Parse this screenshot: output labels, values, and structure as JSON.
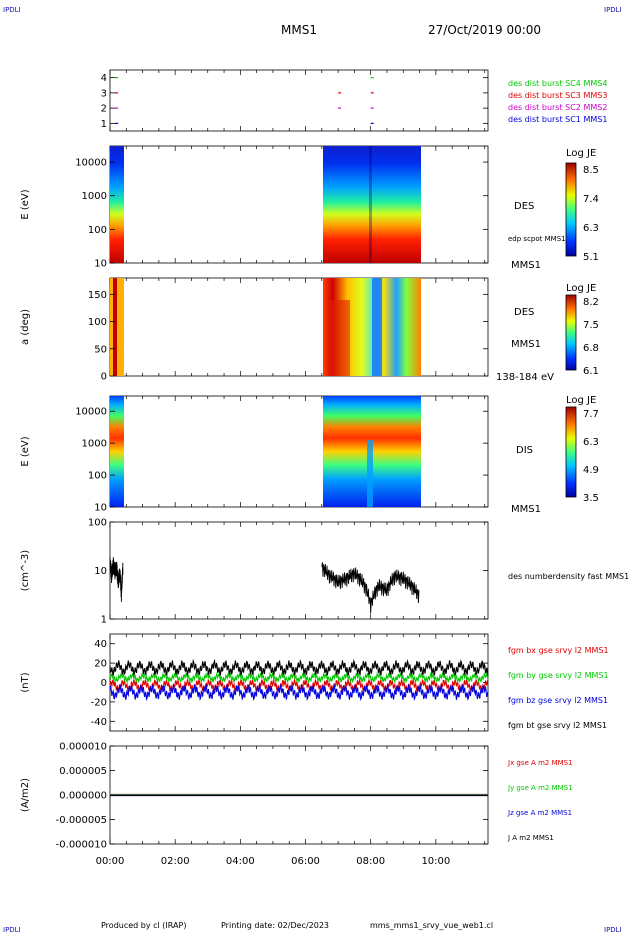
{
  "header": {
    "corner_tl": "IPDLI",
    "corner_tr": "IPDLI",
    "corner_bl": "IPDLI",
    "corner_br": "IPDLI",
    "mission": "MMS1",
    "date": "27/Oct/2019 00:00"
  },
  "footer": {
    "produced": "Produced by cl (IRAP)",
    "printed": "Printing date: 02/Dec/2023",
    "file": "mms_mms1_srvy_vue_web1.cl"
  },
  "colors": {
    "black": "#000000",
    "red": "#e00000",
    "green": "#00c800",
    "blue": "#0000e0",
    "magenta": "#d000d0",
    "gray": "#888888"
  },
  "chart_data": [
    {
      "type": "scatter",
      "panel": "burst-availability",
      "yticks": [
        "1",
        "2",
        "3",
        "4"
      ],
      "ylim": [
        0.5,
        4.5
      ],
      "series": [
        {
          "name": "des dist burst SC1 MMS1",
          "color": "#0000e0",
          "y": 1,
          "segments_h": [
            [
              0.15,
              0.25
            ],
            [
              8.0,
              8.05
            ]
          ]
        },
        {
          "name": "des dist burst SC2 MMS2",
          "color": "#d000d0",
          "y": 2,
          "segments_h": [
            [
              0.15,
              0.25
            ],
            [
              7.0,
              7.05
            ],
            [
              8.0,
              8.05
            ]
          ]
        },
        {
          "name": "des dist burst SC3 MMS3",
          "color": "#e00000",
          "y": 3,
          "segments_h": [
            [
              0.15,
              0.25
            ],
            [
              7.0,
              7.05
            ],
            [
              8.0,
              8.05
            ]
          ]
        },
        {
          "name": "des dist burst SC4 MMS4",
          "color": "#00c800",
          "y": 4,
          "segments_h": [
            [
              0.15,
              0.25
            ],
            [
              8.0,
              8.05
            ]
          ]
        }
      ]
    },
    {
      "type": "heatmap",
      "panel": "des-energy-spectrogram",
      "ylabel": "E (eV)",
      "scale": "log",
      "yticks": [
        "10",
        "100",
        "1000",
        "10000"
      ],
      "ylim": [
        10,
        30000
      ],
      "right_labels": [
        "DES",
        "edp scpot MMS1",
        "MMS1"
      ],
      "colorbar": {
        "title": "Log JE",
        "ticks": [
          "8.5",
          "7.4",
          "6.3",
          "5.1"
        ],
        "range": [
          5.1,
          8.5
        ]
      },
      "data_windows_h": [
        [
          0.0,
          0.4
        ],
        [
          6.5,
          9.5
        ]
      ]
    },
    {
      "type": "heatmap",
      "panel": "des-pitch-angle",
      "ylabel": "a (deg)",
      "yticks": [
        "0",
        "50",
        "100",
        "150"
      ],
      "ylim": [
        0,
        180
      ],
      "right_labels": [
        "DES",
        "MMS1",
        "138-184 eV"
      ],
      "colorbar": {
        "title": "Log JE",
        "ticks": [
          "8.2",
          "7.5",
          "6.8",
          "6.1"
        ],
        "range": [
          6.1,
          8.2
        ]
      },
      "data_windows_h": [
        [
          0.0,
          0.4
        ],
        [
          6.5,
          9.5
        ]
      ]
    },
    {
      "type": "heatmap",
      "panel": "dis-energy-spectrogram",
      "ylabel": "E (eV)",
      "scale": "log",
      "yticks": [
        "10",
        "100",
        "1000",
        "10000"
      ],
      "ylim": [
        10,
        30000
      ],
      "right_labels": [
        "DIS",
        "MMS1"
      ],
      "colorbar": {
        "title": "Log JE",
        "ticks": [
          "7.7",
          "6.3",
          "4.9",
          "3.5"
        ],
        "range": [
          3.5,
          7.7
        ]
      },
      "data_windows_h": [
        [
          0.0,
          0.4
        ],
        [
          6.5,
          9.5
        ]
      ]
    },
    {
      "type": "line",
      "panel": "number-density",
      "ylabel": "(cm^-3)",
      "scale": "log",
      "yticks": [
        "1",
        "10",
        "100"
      ],
      "ylim": [
        1,
        100
      ],
      "series": [
        {
          "name": "des numberdensity fast MMS1",
          "color": "#000000"
        }
      ],
      "segments": [
        {
          "x": [
            0.0,
            0.05,
            0.1,
            0.15,
            0.2,
            0.25,
            0.3,
            0.35,
            0.4
          ],
          "y": [
            15,
            8,
            14,
            10,
            12,
            6,
            9,
            3,
            12
          ]
        },
        {
          "x": [
            6.5,
            6.75,
            7.0,
            7.25,
            7.5,
            7.75,
            8.0,
            8.25,
            8.5,
            8.75,
            9.0,
            9.25,
            9.5
          ],
          "y": [
            12,
            8,
            6,
            7,
            9,
            6,
            2,
            5,
            4,
            8,
            7,
            5,
            3
          ]
        }
      ]
    },
    {
      "type": "line",
      "panel": "magnetic-field",
      "ylabel": "(nT)",
      "yticks": [
        "-40",
        "-20",
        "0",
        "20",
        "40"
      ],
      "ylim": [
        -50,
        50
      ],
      "series": [
        {
          "name": "fgm bx gse srvy l2 MMS1",
          "color": "#e00000",
          "center": -3,
          "amp": 8
        },
        {
          "name": "fgm by gse srvy l2 MMS1",
          "color": "#00c800",
          "center": 5,
          "amp": 6
        },
        {
          "name": "fgm bz gse srvy l2 MMS1",
          "color": "#0000e0",
          "center": -10,
          "amp": 10
        },
        {
          "name": "fgm bt gse srvy l2 MMS1",
          "color": "#000000",
          "center": 15,
          "amp": 10
        }
      ]
    },
    {
      "type": "line",
      "panel": "current-density",
      "ylabel": "(A/m2)",
      "yticks": [
        "-0.000010",
        "-0.000005",
        "0.000000",
        "0.000005",
        "0.000010"
      ],
      "ylim": [
        -1e-05,
        1e-05
      ],
      "series": [
        {
          "name": "Jx gse A m2 MMS1",
          "color": "#e00000"
        },
        {
          "name": "Jy gse A m2 MMS1",
          "color": "#00c800"
        },
        {
          "name": "Jz gse A m2 MMS1",
          "color": "#0000e0"
        },
        {
          "name": "J A m2 MMS1",
          "color": "#000000"
        }
      ],
      "xticks": [
        "00:00",
        "02:00",
        "04:00",
        "06:00",
        "08:00",
        "10:00"
      ],
      "xlim_hours": [
        0,
        11.6
      ]
    }
  ]
}
